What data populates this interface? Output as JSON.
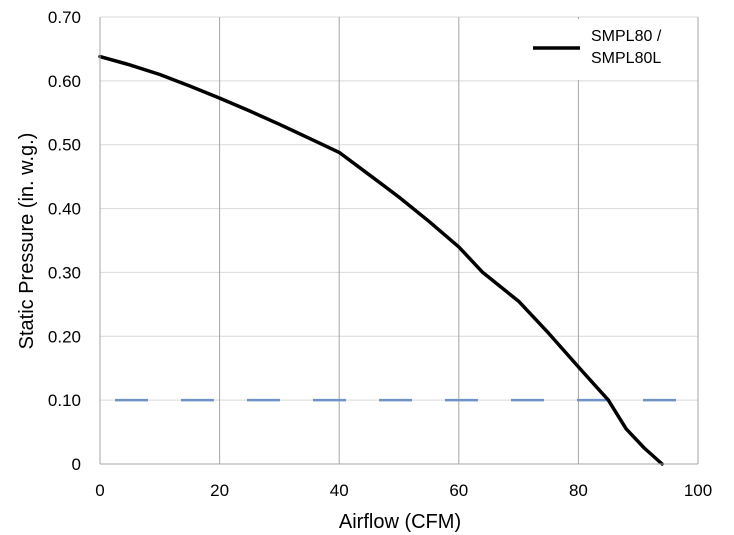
{
  "chart_data": {
    "type": "line",
    "xlabel": "Airflow (CFM)",
    "ylabel": "Static Pressure (in. w.g.)",
    "xlim": [
      0,
      100
    ],
    "ylim": [
      0,
      0.7
    ],
    "x_ticks": [
      0,
      20,
      40,
      60,
      80,
      100
    ],
    "x_tick_labels": [
      "0",
      "20",
      "40",
      "60",
      "80",
      "100"
    ],
    "y_ticks": [
      0,
      0.1,
      0.2,
      0.3,
      0.4,
      0.5,
      0.6,
      0.7
    ],
    "y_tick_labels": [
      "0",
      "0.10",
      "0.20",
      "0.30",
      "0.40",
      "0.50",
      "0.60",
      "0.70"
    ],
    "grid": "horizontal and vertical",
    "legend_position": "top-right",
    "series": [
      {
        "name": "SMPL80 / SMPL80L",
        "color": "#000000",
        "x": [
          0,
          5,
          10,
          15,
          20,
          25,
          30,
          35,
          40,
          45,
          50,
          55,
          60,
          64,
          70,
          75,
          80,
          85,
          88,
          91,
          94
        ],
        "y": [
          0.638,
          0.625,
          0.61,
          0.592,
          0.573,
          0.553,
          0.532,
          0.51,
          0.488,
          0.453,
          0.418,
          0.38,
          0.34,
          0.3,
          0.255,
          0.205,
          0.152,
          0.1,
          0.055,
          0.025,
          0.0
        ]
      }
    ],
    "reference_line": {
      "y": 0.1,
      "color": "#6f93c8",
      "style": "dashed",
      "label_color": "#6f93c8"
    },
    "legend": {
      "lines": [
        "SMPL80 /",
        "SMPL80L"
      ]
    }
  }
}
